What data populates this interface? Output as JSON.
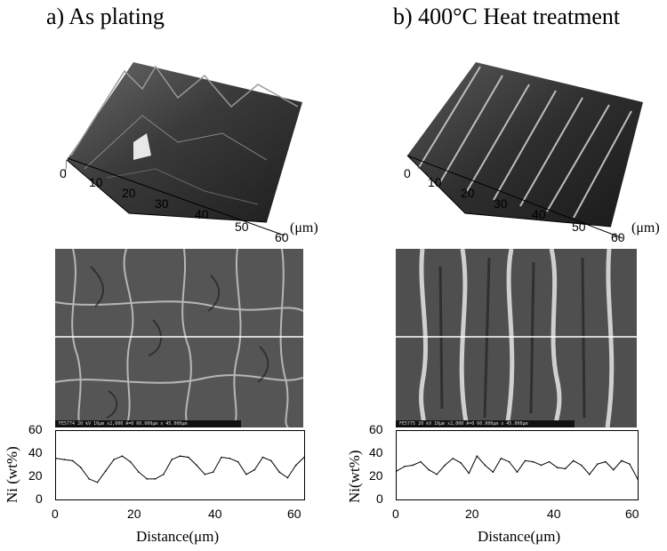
{
  "panels": [
    {
      "id": "a",
      "title": "a) As plating",
      "surface_unit": "(μm)",
      "surface_ticks": [
        "0",
        "10",
        "20",
        "30",
        "40",
        "50",
        "60"
      ],
      "sem_caption": "FE5774  20 kV   10μm  x2,000  A=0  60.000μm x 45.000μm",
      "profile": {
        "ylabel": "Ni (wt%)",
        "xlabel": "Distance(μm)",
        "yticks": [
          "60",
          "40",
          "20",
          "0"
        ],
        "xticks": [
          "0",
          "20",
          "40",
          "60"
        ]
      }
    },
    {
      "id": "b",
      "title": "b) 400°C Heat treatment",
      "surface_unit": "(μm)",
      "surface_ticks": [
        "0",
        "10",
        "20",
        "30",
        "40",
        "50",
        "60"
      ],
      "sem_caption": "FE5775  20 kV   10μm  x2,000  A=0  60.000μm x 45.000μm",
      "profile": {
        "ylabel": "Ni(wt%)",
        "xlabel": "Distance(μm)",
        "yticks": [
          "60",
          "40",
          "20",
          "0"
        ],
        "xticks": [
          "0",
          "20",
          "40",
          "60"
        ]
      }
    }
  ],
  "chart_data": [
    {
      "type": "line",
      "xlim": [
        0,
        60
      ],
      "ylim": [
        0,
        60
      ],
      "xlabel": "Distance(μm)",
      "ylabel": "Ni (wt%)",
      "x": [
        0,
        2,
        4,
        6,
        8,
        10,
        12,
        14,
        16,
        18,
        20,
        22,
        24,
        26,
        28,
        30,
        32,
        34,
        36,
        38,
        40,
        42,
        44,
        46,
        48,
        50,
        52,
        54,
        56,
        58,
        60
      ],
      "series": [
        {
          "values": [
            36,
            35,
            34,
            28,
            18,
            15,
            25,
            35,
            38,
            33,
            24,
            18,
            18,
            22,
            35,
            38,
            37,
            30,
            22,
            24,
            37,
            36,
            33,
            22,
            26,
            37,
            34,
            24,
            19,
            30,
            37
          ]
        }
      ]
    },
    {
      "type": "line",
      "xlim": [
        0,
        60
      ],
      "ylim": [
        0,
        60
      ],
      "xlabel": "Distance(μm)",
      "ylabel": "Ni(wt%)",
      "x": [
        0,
        2,
        4,
        6,
        8,
        10,
        12,
        14,
        16,
        18,
        20,
        22,
        24,
        26,
        28,
        30,
        32,
        34,
        36,
        38,
        40,
        42,
        44,
        46,
        48,
        50,
        52,
        54,
        56,
        58,
        60
      ],
      "series": [
        {
          "values": [
            25,
            29,
            30,
            33,
            26,
            22,
            30,
            36,
            32,
            23,
            38,
            30,
            24,
            36,
            33,
            24,
            34,
            33,
            30,
            33,
            28,
            27,
            34,
            30,
            22,
            31,
            33,
            26,
            34,
            31,
            18
          ]
        }
      ]
    }
  ]
}
